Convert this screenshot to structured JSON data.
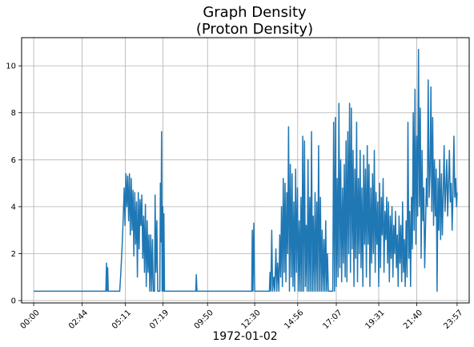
{
  "chart_data": {
    "type": "line",
    "title": [
      "Graph Density",
      "(Proton Density)"
    ],
    "xlabel": "1972-01-02",
    "ylabel": "",
    "grid": true,
    "x_unit": "time of day (HH:MM)",
    "xlim": [
      "-00:41",
      "24:38"
    ],
    "ylim": [
      -0.1,
      11.2
    ],
    "x_ticks": [
      "00:00",
      "02:44",
      "05:11",
      "07:19",
      "09:50",
      "12:30",
      "14:56",
      "17:07",
      "19:31",
      "21:40",
      "23:57"
    ],
    "y_ticks": [
      0,
      2,
      4,
      6,
      8,
      10
    ],
    "series": [
      {
        "color": "#1f77b4",
        "points": [
          [
            "00:00",
            0.4
          ],
          [
            "04:05",
            0.4
          ],
          [
            "04:07",
            1.6
          ],
          [
            "04:09",
            0.4
          ],
          [
            "04:11",
            1.4
          ],
          [
            "04:13",
            0.4
          ],
          [
            "04:52",
            0.4
          ],
          [
            "04:55",
            1.0
          ],
          [
            "04:58",
            1.8
          ],
          [
            "05:01",
            2.6
          ],
          [
            "05:04",
            3.6
          ],
          [
            "05:07",
            4.8
          ],
          [
            "05:10",
            3.2
          ],
          [
            "05:13",
            5.4
          ],
          [
            "05:16",
            4.0
          ],
          [
            "05:19",
            5.3
          ],
          [
            "05:22",
            3.4
          ],
          [
            "05:25",
            5.4
          ],
          [
            "05:28",
            2.8
          ],
          [
            "05:31",
            5.2
          ],
          [
            "05:34",
            3.0
          ],
          [
            "05:37",
            4.7
          ],
          [
            "05:40",
            1.9
          ],
          [
            "05:43",
            4.6
          ],
          [
            "05:46",
            2.4
          ],
          [
            "05:49",
            4.2
          ],
          [
            "05:52",
            1.0
          ],
          [
            "05:55",
            4.6
          ],
          [
            "05:58",
            2.2
          ],
          [
            "06:01",
            4.3
          ],
          [
            "06:04",
            3.2
          ],
          [
            "06:07",
            4.5
          ],
          [
            "06:10",
            1.8
          ],
          [
            "06:13",
            3.6
          ],
          [
            "06:16",
            1.2
          ],
          [
            "06:19",
            4.1
          ],
          [
            "06:22",
            0.6
          ],
          [
            "06:25",
            3.4
          ],
          [
            "06:28",
            1.2
          ],
          [
            "06:31",
            2.8
          ],
          [
            "06:34",
            0.4
          ],
          [
            "06:37",
            2.8
          ],
          [
            "06:40",
            0.4
          ],
          [
            "06:43",
            2.6
          ],
          [
            "06:46",
            0.4
          ],
          [
            "06:50",
            0.4
          ],
          [
            "06:52",
            4.5
          ],
          [
            "06:55",
            1.2
          ],
          [
            "06:58",
            3.4
          ],
          [
            "07:01",
            0.4
          ],
          [
            "07:08",
            0.4
          ],
          [
            "07:10",
            5.0
          ],
          [
            "07:12",
            2.5
          ],
          [
            "07:14",
            7.2
          ],
          [
            "07:16",
            0.4
          ],
          [
            "07:18",
            4.0
          ],
          [
            "07:20",
            0.4
          ],
          [
            "07:22",
            3.7
          ],
          [
            "07:24",
            0.4
          ],
          [
            "09:10",
            0.4
          ],
          [
            "09:12",
            1.1
          ],
          [
            "09:14",
            0.4
          ],
          [
            "12:20",
            0.4
          ],
          [
            "12:22",
            3.0
          ],
          [
            "12:24",
            0.4
          ],
          [
            "12:27",
            3.3
          ],
          [
            "12:30",
            0.4
          ],
          [
            "13:20",
            0.4
          ],
          [
            "13:22",
            1.2
          ],
          [
            "13:25",
            0.4
          ],
          [
            "13:28",
            3.0
          ],
          [
            "13:31",
            0.4
          ],
          [
            "13:35",
            1.0
          ],
          [
            "13:38",
            0.4
          ],
          [
            "13:42",
            2.2
          ],
          [
            "13:45",
            0.4
          ],
          [
            "13:48",
            1.6
          ],
          [
            "13:52",
            0.4
          ],
          [
            "13:55",
            2.8
          ],
          [
            "13:58",
            1.0
          ],
          [
            "14:01",
            4.0
          ],
          [
            "14:04",
            0.6
          ],
          [
            "14:07",
            5.2
          ],
          [
            "14:10",
            1.2
          ],
          [
            "14:13",
            5.0
          ],
          [
            "14:16",
            0.8
          ],
          [
            "14:19",
            4.6
          ],
          [
            "14:22",
            2.0
          ],
          [
            "14:25",
            7.4
          ],
          [
            "14:28",
            0.4
          ],
          [
            "14:31",
            5.8
          ],
          [
            "14:34",
            1.0
          ],
          [
            "14:37",
            5.4
          ],
          [
            "14:40",
            0.6
          ],
          [
            "14:43",
            4.2
          ],
          [
            "14:46",
            0.4
          ],
          [
            "14:49",
            5.6
          ],
          [
            "14:52",
            1.2
          ],
          [
            "14:55",
            4.8
          ],
          [
            "14:58",
            0.4
          ],
          [
            "15:01",
            3.4
          ],
          [
            "15:04",
            0.4
          ],
          [
            "15:07",
            4.4
          ],
          [
            "15:10",
            0.4
          ],
          [
            "15:13",
            7.0
          ],
          [
            "15:16",
            0.4
          ],
          [
            "15:19",
            6.8
          ],
          [
            "15:22",
            0.6
          ],
          [
            "15:25",
            3.2
          ],
          [
            "15:28",
            0.4
          ],
          [
            "15:31",
            6.0
          ],
          [
            "15:34",
            0.4
          ],
          [
            "15:37",
            4.4
          ],
          [
            "15:40",
            0.4
          ],
          [
            "15:43",
            7.2
          ],
          [
            "15:46",
            0.4
          ],
          [
            "15:49",
            3.6
          ],
          [
            "15:52",
            0.4
          ],
          [
            "15:55",
            4.6
          ],
          [
            "15:58",
            0.4
          ],
          [
            "16:01",
            4.2
          ],
          [
            "16:04",
            0.4
          ],
          [
            "16:07",
            6.6
          ],
          [
            "16:10",
            0.4
          ],
          [
            "16:13",
            4.4
          ],
          [
            "16:16",
            0.4
          ],
          [
            "16:19",
            3.0
          ],
          [
            "16:22",
            0.4
          ],
          [
            "16:25",
            2.6
          ],
          [
            "16:28",
            0.4
          ],
          [
            "16:31",
            3.4
          ],
          [
            "16:34",
            0.4
          ],
          [
            "16:37",
            2.0
          ],
          [
            "16:40",
            0.4
          ],
          [
            "16:55",
            0.4
          ],
          [
            "16:58",
            7.6
          ],
          [
            "17:01",
            0.4
          ],
          [
            "17:04",
            7.8
          ],
          [
            "17:07",
            0.6
          ],
          [
            "17:10",
            5.2
          ],
          [
            "17:13",
            1.0
          ],
          [
            "17:16",
            8.4
          ],
          [
            "17:19",
            1.4
          ],
          [
            "17:22",
            6.0
          ],
          [
            "17:25",
            0.8
          ],
          [
            "17:28",
            4.8
          ],
          [
            "17:31",
            1.6
          ],
          [
            "17:34",
            5.8
          ],
          [
            "17:37",
            1.0
          ],
          [
            "17:40",
            6.8
          ],
          [
            "17:43",
            0.8
          ],
          [
            "17:46",
            7.2
          ],
          [
            "17:49",
            2.0
          ],
          [
            "17:52",
            8.4
          ],
          [
            "17:55",
            1.2
          ],
          [
            "17:58",
            8.2
          ],
          [
            "18:01",
            2.2
          ],
          [
            "18:04",
            6.4
          ],
          [
            "18:07",
            0.6
          ],
          [
            "18:10",
            5.6
          ],
          [
            "18:13",
            1.8
          ],
          [
            "18:16",
            7.6
          ],
          [
            "18:19",
            0.8
          ],
          [
            "18:22",
            5.2
          ],
          [
            "18:25",
            2.0
          ],
          [
            "18:28",
            6.4
          ],
          [
            "18:31",
            1.4
          ],
          [
            "18:34",
            4.8
          ],
          [
            "18:37",
            0.6
          ],
          [
            "18:40",
            6.2
          ],
          [
            "18:43",
            2.4
          ],
          [
            "18:46",
            5.6
          ],
          [
            "18:49",
            1.0
          ],
          [
            "18:52",
            6.6
          ],
          [
            "18:55",
            2.4
          ],
          [
            "18:58",
            5.8
          ],
          [
            "19:01",
            0.6
          ],
          [
            "19:04",
            4.8
          ],
          [
            "19:07",
            1.6
          ],
          [
            "19:10",
            5.4
          ],
          [
            "19:13",
            2.0
          ],
          [
            "19:16",
            6.4
          ],
          [
            "19:19",
            1.2
          ],
          [
            "19:22",
            4.6
          ],
          [
            "19:25",
            2.4
          ],
          [
            "19:28",
            4.2
          ],
          [
            "19:31",
            0.6
          ],
          [
            "19:34",
            5.0
          ],
          [
            "19:37",
            1.4
          ],
          [
            "19:40",
            4.4
          ],
          [
            "19:43",
            2.8
          ],
          [
            "19:46",
            5.2
          ],
          [
            "19:49",
            1.2
          ],
          [
            "19:52",
            3.8
          ],
          [
            "19:55",
            2.6
          ],
          [
            "19:58",
            4.4
          ],
          [
            "20:01",
            1.6
          ],
          [
            "20:04",
            4.2
          ],
          [
            "20:07",
            0.8
          ],
          [
            "20:10",
            3.6
          ],
          [
            "20:13",
            1.8
          ],
          [
            "20:16",
            4.0
          ],
          [
            "20:19",
            1.0
          ],
          [
            "20:22",
            3.2
          ],
          [
            "20:25",
            2.0
          ],
          [
            "20:28",
            3.8
          ],
          [
            "20:31",
            1.4
          ],
          [
            "20:34",
            2.8
          ],
          [
            "20:37",
            0.6
          ],
          [
            "20:40",
            3.6
          ],
          [
            "20:43",
            1.6
          ],
          [
            "20:46",
            3.2
          ],
          [
            "20:49",
            0.8
          ],
          [
            "20:52",
            4.2
          ],
          [
            "20:55",
            1.2
          ],
          [
            "20:58",
            2.6
          ],
          [
            "21:01",
            0.6
          ],
          [
            "21:04",
            3.4
          ],
          [
            "21:07",
            1.0
          ],
          [
            "21:10",
            7.6
          ],
          [
            "21:13",
            1.8
          ],
          [
            "21:16",
            3.8
          ],
          [
            "21:19",
            0.6
          ],
          [
            "21:22",
            4.4
          ],
          [
            "21:25",
            2.2
          ],
          [
            "21:28",
            8.0
          ],
          [
            "21:31",
            3.0
          ],
          [
            "21:34",
            9.0
          ],
          [
            "21:37",
            2.4
          ],
          [
            "21:40",
            7.0
          ],
          [
            "21:43",
            3.6
          ],
          [
            "21:46",
            10.7
          ],
          [
            "21:49",
            4.0
          ],
          [
            "21:52",
            8.2
          ],
          [
            "21:55",
            1.8
          ],
          [
            "21:58",
            6.4
          ],
          [
            "22:01",
            3.4
          ],
          [
            "22:04",
            4.8
          ],
          [
            "22:07",
            1.4
          ],
          [
            "22:10",
            3.2
          ],
          [
            "22:13",
            5.2
          ],
          [
            "22:16",
            4.0
          ],
          [
            "22:19",
            9.4
          ],
          [
            "22:22",
            4.4
          ],
          [
            "22:25",
            5.4
          ],
          [
            "22:28",
            9.1
          ],
          [
            "22:31",
            3.8
          ],
          [
            "22:34",
            7.8
          ],
          [
            "22:37",
            3.2
          ],
          [
            "22:40",
            6.0
          ],
          [
            "22:43",
            3.6
          ],
          [
            "22:46",
            5.6
          ],
          [
            "22:49",
            0.4
          ],
          [
            "22:52",
            5.2
          ],
          [
            "22:55",
            3.0
          ],
          [
            "22:58",
            6.0
          ],
          [
            "23:01",
            2.6
          ],
          [
            "23:04",
            5.4
          ],
          [
            "23:07",
            2.8
          ],
          [
            "23:10",
            4.6
          ],
          [
            "23:13",
            6.6
          ],
          [
            "23:16",
            3.8
          ],
          [
            "23:19",
            4.8
          ],
          [
            "23:22",
            6.0
          ],
          [
            "23:25",
            3.6
          ],
          [
            "23:28",
            5.0
          ],
          [
            "23:31",
            6.4
          ],
          [
            "23:34",
            4.2
          ],
          [
            "23:37",
            5.0
          ],
          [
            "23:40",
            3.0
          ],
          [
            "23:43",
            4.6
          ],
          [
            "23:46",
            7.0
          ],
          [
            "23:49",
            4.4
          ],
          [
            "23:52",
            5.2
          ],
          [
            "23:55",
            4.0
          ],
          [
            "23:57",
            4.6
          ]
        ]
      }
    ]
  }
}
